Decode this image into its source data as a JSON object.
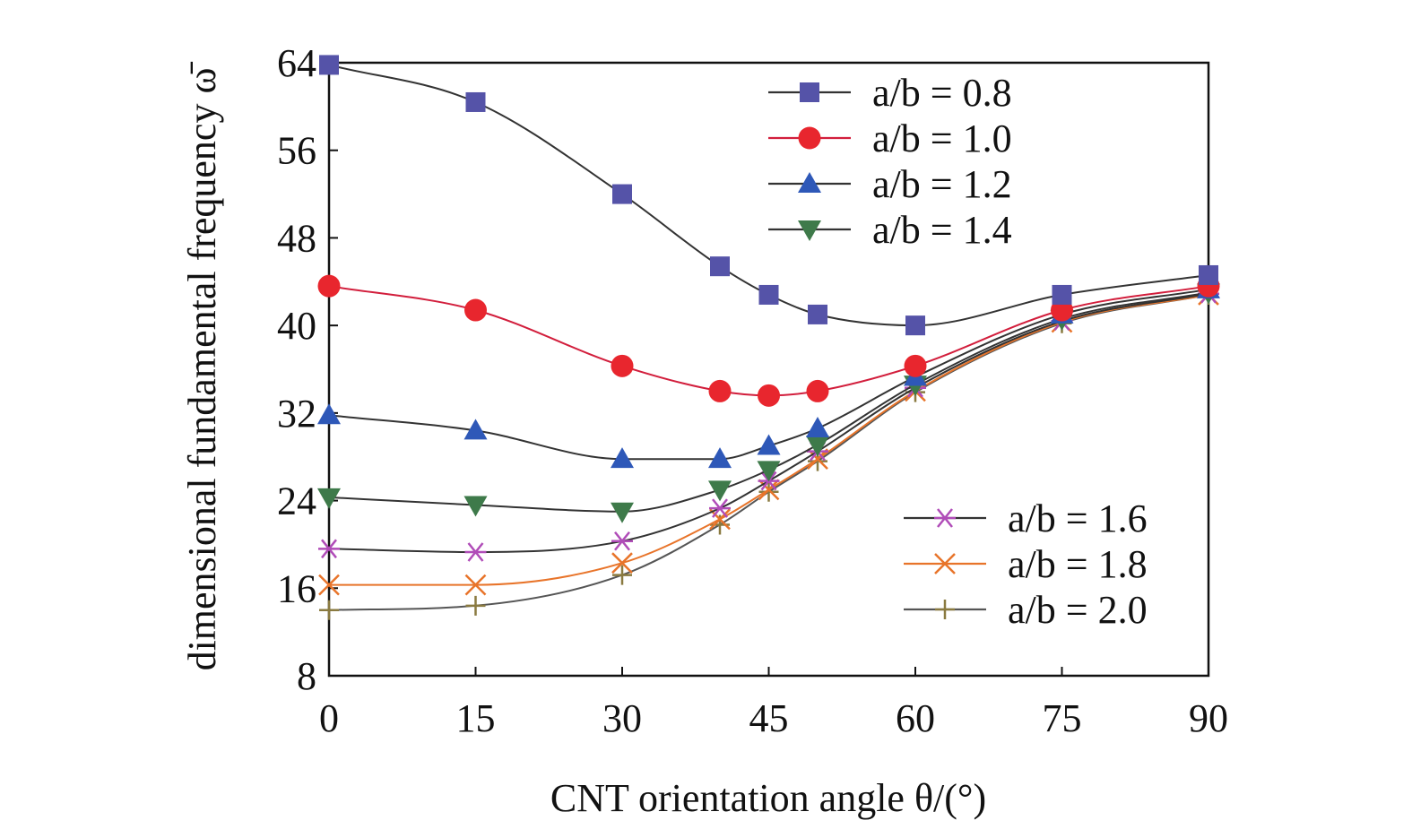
{
  "chart_data": {
    "type": "line",
    "xlabel": "CNT orientation angle θ/(°)",
    "ylabel": "dimensional fundamental frequency ω̄",
    "x": [
      0,
      15,
      30,
      40,
      45,
      50,
      60,
      75,
      90
    ],
    "xlim": [
      0,
      90
    ],
    "ylim": [
      8,
      64
    ],
    "xticks": [
      0,
      15,
      30,
      45,
      60,
      75,
      90
    ],
    "yticks": [
      8,
      16,
      24,
      32,
      40,
      48,
      56,
      64
    ],
    "grid": false,
    "legend": [
      {
        "placement": "top-right",
        "entries": [
          "a/b = 0.8",
          "a/b = 1.0",
          "a/b = 1.2",
          "a/b = 1.4"
        ]
      },
      {
        "placement": "bottom-right",
        "entries": [
          "a/b = 1.6",
          "a/b = 1.8",
          "a/b = 2.0"
        ]
      }
    ],
    "series": [
      {
        "name": "a/b = 0.8",
        "marker": "square",
        "color": "#5553a8",
        "line_color": "#333333",
        "values": [
          63.8,
          60.4,
          52.0,
          45.4,
          42.8,
          41.0,
          40.0,
          42.8,
          44.6
        ]
      },
      {
        "name": "a/b = 1.0",
        "marker": "circle",
        "color": "#e8262e",
        "line_color": "#d21e3c",
        "values": [
          43.6,
          41.4,
          36.3,
          34.0,
          33.6,
          34.0,
          36.3,
          41.4,
          43.6
        ]
      },
      {
        "name": "a/b = 1.2",
        "marker": "triangle-up",
        "color": "#2e58b8",
        "line_color": "#333333",
        "values": [
          31.8,
          30.4,
          27.8,
          27.8,
          29.0,
          30.6,
          35.3,
          41.0,
          43.3
        ]
      },
      {
        "name": "a/b = 1.4",
        "marker": "triangle-down",
        "color": "#3e7a4a",
        "line_color": "#333333",
        "values": [
          24.3,
          23.6,
          23.0,
          25.0,
          26.8,
          29.1,
          34.6,
          40.6,
          43.0
        ]
      },
      {
        "name": "a/b = 1.6",
        "marker": "asterisk",
        "color": "#b04cb8",
        "line_color": "#333333",
        "values": [
          19.6,
          19.3,
          20.3,
          23.3,
          25.8,
          28.5,
          34.3,
          40.4,
          42.9
        ]
      },
      {
        "name": "a/b = 1.8",
        "marker": "x",
        "color": "#e8742a",
        "line_color": "#e8742a",
        "values": [
          16.3,
          16.3,
          18.3,
          22.3,
          25.0,
          27.8,
          34.0,
          40.3,
          42.8
        ]
      },
      {
        "name": "a/b = 2.0",
        "marker": "plus",
        "color": "#8a7a40",
        "line_color": "#555555",
        "values": [
          14.0,
          14.4,
          17.2,
          21.8,
          24.8,
          27.6,
          33.9,
          40.2,
          42.8
        ]
      }
    ]
  }
}
